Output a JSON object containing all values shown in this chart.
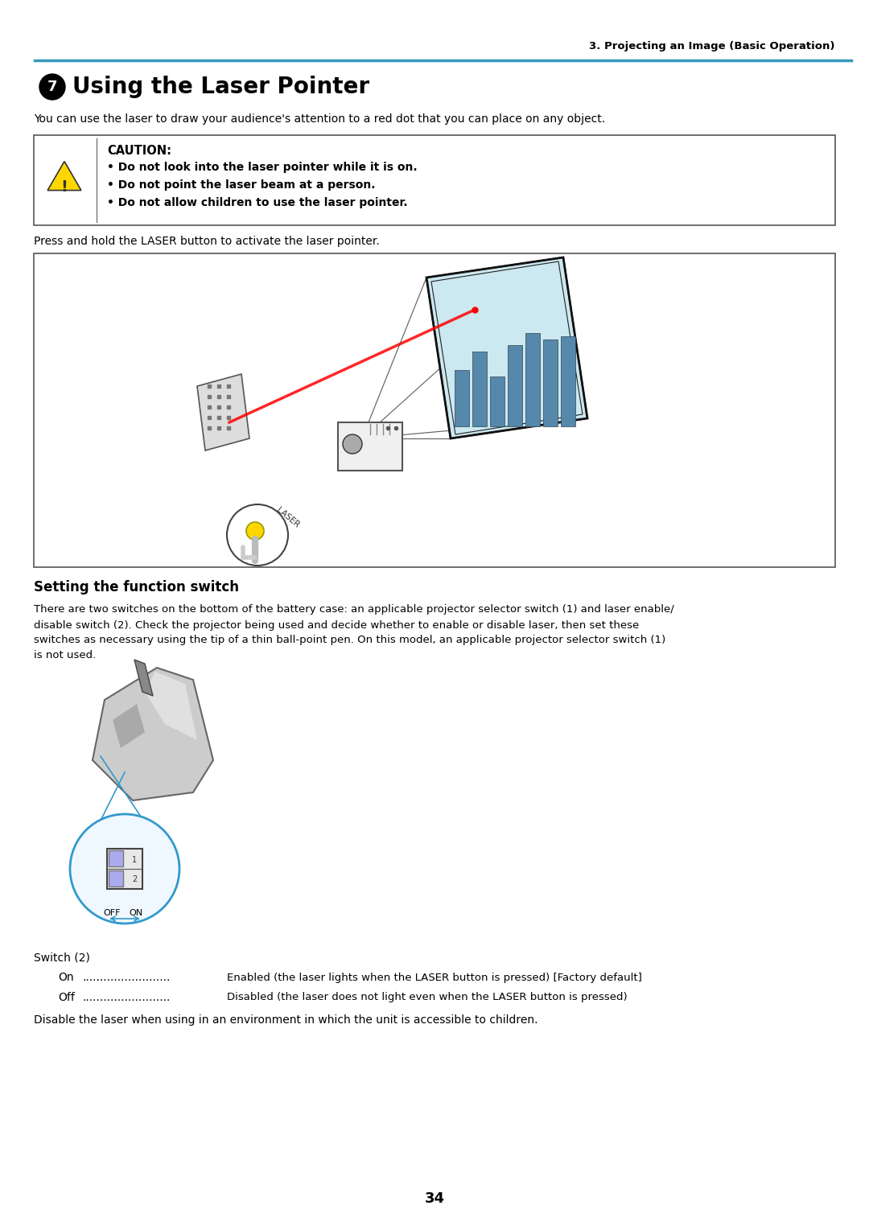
{
  "page_bg": "#ffffff",
  "header_text": "3. Projecting an Image (Basic Operation)",
  "header_line_color": "#3399bb",
  "section_number": "7",
  "section_title": "Using the Laser Pointer",
  "intro_text": "You can use the laser to draw your audience's attention to a red dot that you can place on any object.",
  "caution_title": "CAUTION:",
  "caution_lines": [
    "• Do not look into the laser pointer while it is on.",
    "• Do not point the laser beam at a person.",
    "• Do not allow children to use the laser pointer."
  ],
  "laser_instruction": "Press and hold the LASER button to activate the laser pointer.",
  "function_switch_title": "Setting the function switch",
  "body_lines": [
    "There are two switches on the bottom of the battery case: an applicable projector selector switch (1) and laser enable/",
    "disable switch (2). Check the projector being used and decide whether to enable or disable laser, then set these",
    "switches as necessary using the tip of a thin ball-point pen. On this model, an applicable projector selector switch (1)",
    "is not used."
  ],
  "switch_label": "Switch (2)",
  "switch_on_text": "On ......................... Enabled (the laser lights when the LASER button is pressed) [Factory default]",
  "switch_off_text": "Off ......................... Disabled (the laser does not light even when the LASER button is pressed)",
  "disable_text": "Disable the laser when using in an environment in which the unit is accessible to children.",
  "page_number": "34"
}
